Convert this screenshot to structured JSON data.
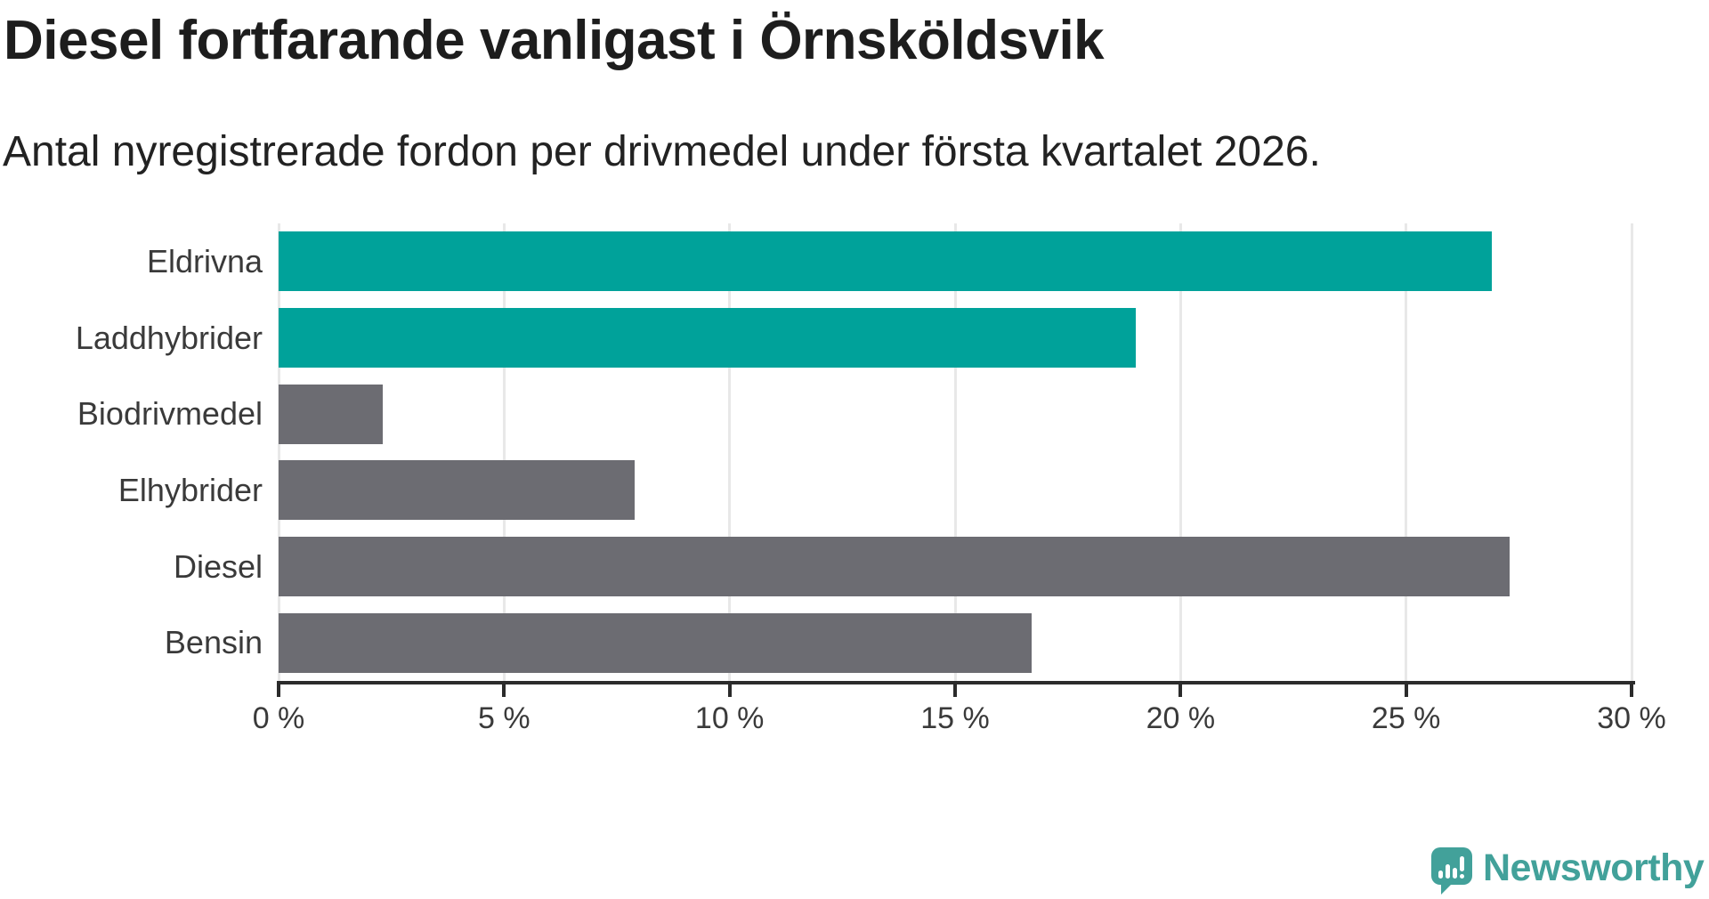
{
  "chart_data": {
    "type": "bar",
    "orientation": "horizontal",
    "title": "Diesel fortfarande vanligast i Örnsköldsvik",
    "subtitle": "Antal nyregistrerade fordon per drivmedel under första kvartalet 2026.",
    "categories": [
      "Eldrivna",
      "Laddhybrider",
      "Biodrivmedel",
      "Elhybrider",
      "Diesel",
      "Bensin"
    ],
    "values": [
      26.9,
      19.0,
      2.3,
      7.9,
      27.3,
      16.7
    ],
    "unit": "%",
    "bar_colors": [
      "#00a29a",
      "#00a29a",
      "#6c6c72",
      "#6c6c72",
      "#6c6c72",
      "#6c6c72"
    ],
    "xlabel": "",
    "ylabel": "",
    "xlim": [
      0,
      30
    ],
    "x_ticks": [
      0,
      5,
      10,
      15,
      20,
      25,
      30
    ],
    "x_tick_labels": [
      "0 %",
      "5 %",
      "10 %",
      "15 %",
      "20 %",
      "25 %",
      "30 %"
    ],
    "grid": true,
    "legend": "none"
  },
  "colors": {
    "accent_teal": "#00a29a",
    "bar_gray": "#6c6c72",
    "logo_teal": "#42a19a",
    "axis": "#2b2b2b",
    "gridline": "#e8e8e8"
  },
  "footer": {
    "brand": "Newsworthy"
  }
}
